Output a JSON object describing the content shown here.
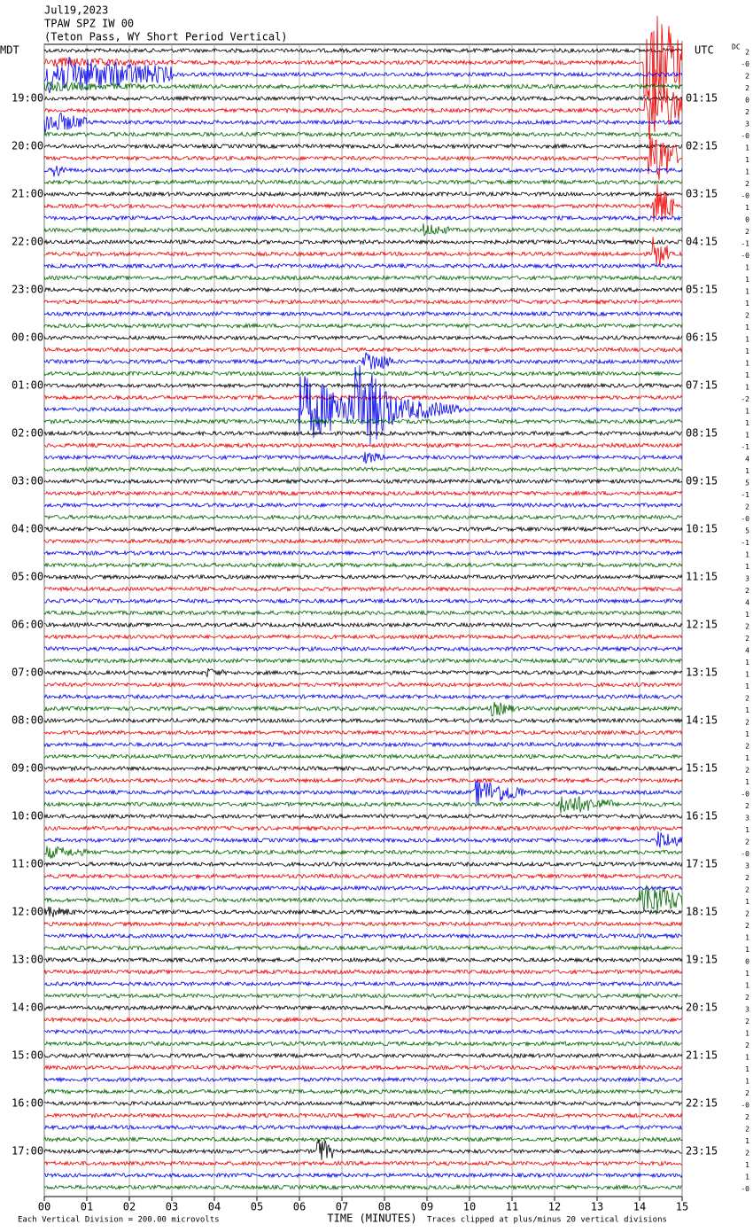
{
  "chart_data": {
    "type": "helicorder",
    "title_lines": [
      "Jul19,2023",
      "TPAW SPZ IW 00",
      "(Teton Pass, WY Short Period Vertical)"
    ],
    "left_header": "MDT",
    "right_header": "UTC",
    "dc_header": "DC",
    "left_labels": [
      "19:00",
      "20:00",
      "21:00",
      "22:00",
      "23:00",
      "00:00",
      "01:00",
      "02:00",
      "03:00",
      "04:00",
      "05:00",
      "06:00",
      "07:00",
      "08:00",
      "09:00",
      "10:00",
      "11:00",
      "12:00",
      "13:00",
      "14:00",
      "15:00",
      "16:00",
      "17:00"
    ],
    "right_labels": [
      "01:15",
      "02:15",
      "03:15",
      "04:15",
      "05:15",
      "06:15",
      "07:15",
      "08:15",
      "09:15",
      "10:15",
      "11:15",
      "12:15",
      "13:15",
      "14:15",
      "15:15",
      "16:15",
      "17:15",
      "18:15",
      "19:15",
      "20:15",
      "21:15",
      "22:15",
      "23:15"
    ],
    "dc_values": [
      "2",
      "-0",
      "2",
      "2",
      "0",
      "2",
      "3",
      "-0",
      "1",
      "1",
      "1",
      "2",
      "-0",
      "1",
      "0",
      "2",
      "-1",
      "-0",
      "1",
      "1",
      "1",
      "1",
      "2",
      "1",
      "1",
      "1",
      "1",
      "1",
      "1",
      "-2",
      "1",
      "1",
      "1",
      "-1",
      "4",
      "1",
      "5",
      "-1",
      "2",
      "-0",
      "5",
      "-1",
      "1",
      "1",
      "3",
      "2",
      "4",
      "1",
      "2",
      "2",
      "4",
      "1",
      "1",
      "1",
      "2",
      "1",
      "2",
      "1",
      "2",
      "1",
      "2",
      "1",
      "-0",
      "2",
      "3",
      "1",
      "2",
      "-0",
      "3",
      "2",
      "2",
      "1",
      "2",
      "2",
      "1",
      "1",
      "0",
      "1",
      "1",
      "2",
      "3",
      "2",
      "1",
      "2",
      "1",
      "1",
      "1",
      "2",
      "-0",
      "2",
      "2",
      "1",
      "2",
      "1",
      "1",
      "-0"
    ],
    "trace_colors": [
      "#000000",
      "#ee0000",
      "#0000ee",
      "#006600"
    ],
    "xlim": [
      0,
      15
    ],
    "xticks": [
      {
        "value": 0,
        "label": "00"
      },
      {
        "value": 1,
        "label": "01"
      },
      {
        "value": 2,
        "label": "02"
      },
      {
        "value": 3,
        "label": "03"
      },
      {
        "value": 4,
        "label": "04"
      },
      {
        "value": 5,
        "label": "05"
      },
      {
        "value": 6,
        "label": "06"
      },
      {
        "value": 7,
        "label": "07"
      },
      {
        "value": 8,
        "label": "08"
      },
      {
        "value": 9,
        "label": "09"
      },
      10,
      11,
      12,
      13,
      14,
      15
    ],
    "xlabel": "TIME (MINUTES)",
    "footer_left": "Each Vertical Division =  200.00 microvolts",
    "footer_right": "Traces clipped at plus/minus 20 vertical divisions"
  }
}
